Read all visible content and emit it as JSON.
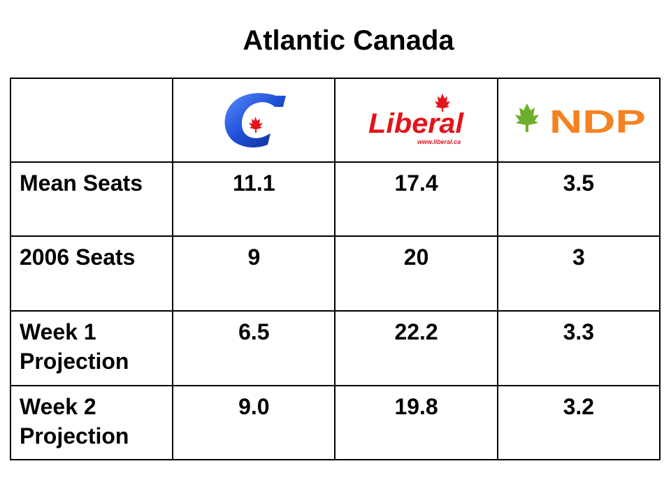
{
  "title": "Atlantic Canada",
  "parties": [
    {
      "logo": "conservative-c-logo-icon"
    },
    {
      "logo": "liberal-logo-icon",
      "wordmark": "Liberal",
      "url": "www.liberal.ca"
    },
    {
      "logo": "ndp-logo-icon",
      "wordmark": "NDP"
    }
  ],
  "rows": [
    {
      "label": "Mean Seats",
      "values": [
        "11.1",
        "17.4",
        "3.5"
      ]
    },
    {
      "label": "2006 Seats",
      "values": [
        "9",
        "20",
        "3"
      ]
    },
    {
      "label": "Week 1 Projection",
      "values": [
        "6.5",
        "22.2",
        "3.3"
      ]
    },
    {
      "label": "Week 2 Projection",
      "values": [
        "9.0",
        "19.8",
        "3.2"
      ]
    }
  ],
  "colors": {
    "conservative_blue": "#1f4fd6",
    "liberal_red": "#e3141b",
    "ndp_orange": "#f58220",
    "ndp_green": "#6fae2c"
  }
}
